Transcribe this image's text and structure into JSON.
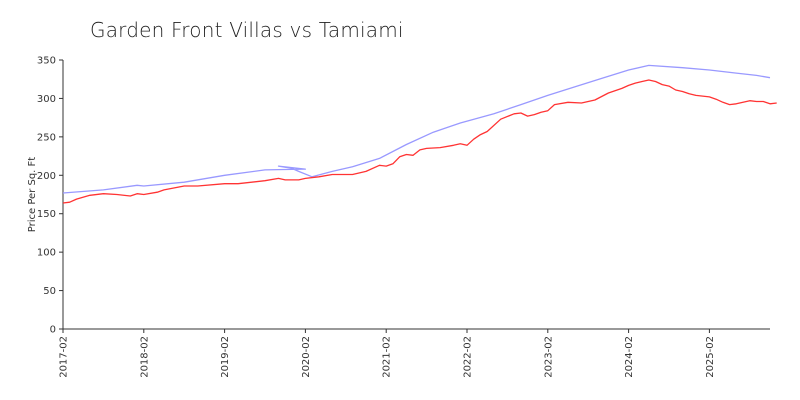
{
  "chart_data": {
    "type": "line",
    "title": "Garden Front Villas vs Tamiami",
    "xlabel": "",
    "ylabel": "Price Per Sq. Ft",
    "ylim": [
      0,
      350
    ],
    "yticks": [
      0,
      50,
      100,
      150,
      200,
      250,
      300,
      350
    ],
    "xlim": [
      "2017-02",
      "2025-11"
    ],
    "xticks": [
      "2017-02",
      "2018-02",
      "2019-02",
      "2020-02",
      "2021-02",
      "2022-02",
      "2023-02",
      "2024-02",
      "2025-02"
    ],
    "grid": false,
    "legend": "none",
    "colors": [
      "#9999ff",
      "#ff3333"
    ],
    "series": [
      {
        "values": [
          [
            "2017-02",
            177
          ],
          [
            "2017-08",
            181
          ],
          [
            "2018-01",
            187
          ],
          [
            "2018-02",
            186
          ],
          [
            "2018-08",
            191
          ],
          [
            "2019-02",
            200
          ],
          [
            "2019-08",
            207
          ],
          [
            "2020-02",
            208
          ],
          [
            "2019-10",
            212
          ],
          [
            "2019-12",
            209
          ],
          [
            "2020-01",
            205
          ],
          [
            "2020-03",
            198
          ],
          [
            "2020-06",
            205
          ],
          [
            "2020-09",
            211
          ],
          [
            "2021-01",
            222
          ],
          [
            "2021-05",
            240
          ],
          [
            "2021-09",
            256
          ],
          [
            "2022-01",
            268
          ],
          [
            "2022-06",
            280
          ],
          [
            "2022-10",
            292
          ],
          [
            "2023-02",
            304
          ],
          [
            "2023-06",
            315
          ],
          [
            "2023-10",
            326
          ],
          [
            "2024-02",
            337
          ],
          [
            "2024-05",
            343
          ],
          [
            "2024-10",
            340
          ],
          [
            "2025-02",
            337
          ],
          [
            "2025-06",
            333
          ],
          [
            "2025-09",
            330
          ],
          [
            "2025-11",
            327
          ]
        ]
      },
      {
        "values": [
          [
            "2017-02",
            164
          ],
          [
            "2017-03",
            165
          ],
          [
            "2017-04",
            169
          ],
          [
            "2017-06",
            174
          ],
          [
            "2017-08",
            176
          ],
          [
            "2017-10",
            175
          ],
          [
            "2017-12",
            173
          ],
          [
            "2018-01",
            176
          ],
          [
            "2018-02",
            175
          ],
          [
            "2018-04",
            178
          ],
          [
            "2018-05",
            181
          ],
          [
            "2018-08",
            186
          ],
          [
            "2018-10",
            186
          ],
          [
            "2019-02",
            189
          ],
          [
            "2019-04",
            189
          ],
          [
            "2019-08",
            193
          ],
          [
            "2019-10",
            196
          ],
          [
            "2019-11",
            194
          ],
          [
            "2020-01",
            194
          ],
          [
            "2020-02",
            196
          ],
          [
            "2020-04",
            198
          ],
          [
            "2020-06",
            201
          ],
          [
            "2020-09",
            201
          ],
          [
            "2020-11",
            205
          ],
          [
            "2021-01",
            213
          ],
          [
            "2021-02",
            212
          ],
          [
            "2021-03",
            215
          ],
          [
            "2021-04",
            224
          ],
          [
            "2021-05",
            227
          ],
          [
            "2021-06",
            226
          ],
          [
            "2021-07",
            233
          ],
          [
            "2021-08",
            235
          ],
          [
            "2021-10",
            236
          ],
          [
            "2021-12",
            239
          ],
          [
            "2022-01",
            241
          ],
          [
            "2022-02",
            239
          ],
          [
            "2022-03",
            247
          ],
          [
            "2022-04",
            253
          ],
          [
            "2022-05",
            257
          ],
          [
            "2022-07",
            273
          ],
          [
            "2022-09",
            280
          ],
          [
            "2022-10",
            281
          ],
          [
            "2022-11",
            277
          ],
          [
            "2022-12",
            279
          ],
          [
            "2023-01",
            282
          ],
          [
            "2023-02",
            284
          ],
          [
            "2023-03",
            292
          ],
          [
            "2023-05",
            295
          ],
          [
            "2023-07",
            294
          ],
          [
            "2023-09",
            298
          ],
          [
            "2023-11",
            307
          ],
          [
            "2024-01",
            313
          ],
          [
            "2024-02",
            317
          ],
          [
            "2024-03",
            320
          ],
          [
            "2024-04",
            322
          ],
          [
            "2024-05",
            324
          ],
          [
            "2024-06",
            322
          ],
          [
            "2024-07",
            318
          ],
          [
            "2024-08",
            316
          ],
          [
            "2024-09",
            311
          ],
          [
            "2024-10",
            309
          ],
          [
            "2024-11",
            306
          ],
          [
            "2024-12",
            304
          ],
          [
            "2025-01",
            303
          ],
          [
            "2025-02",
            302
          ],
          [
            "2025-03",
            299
          ],
          [
            "2025-04",
            295
          ],
          [
            "2025-05",
            292
          ],
          [
            "2025-06",
            293
          ],
          [
            "2025-08",
            297
          ],
          [
            "2025-09",
            296
          ],
          [
            "2025-10",
            296
          ],
          [
            "2025-11",
            293
          ],
          [
            "2025-12",
            294
          ]
        ]
      }
    ]
  }
}
